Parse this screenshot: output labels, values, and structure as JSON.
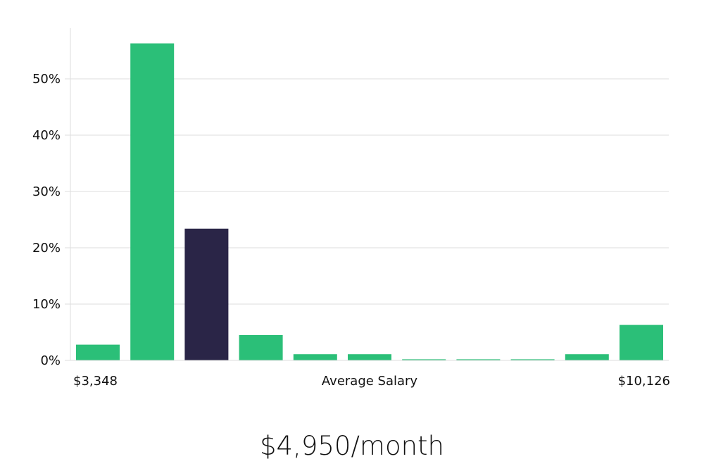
{
  "chart_data": {
    "type": "bar",
    "categories": [
      "",
      "",
      "",
      "",
      "",
      "",
      "",
      "",
      "",
      "",
      ""
    ],
    "values": [
      2.8,
      56.3,
      23.4,
      4.5,
      1.1,
      1.1,
      0.2,
      0.2,
      0.2,
      1.1,
      6.3
    ],
    "highlight_index": 2,
    "y_ticks": [
      0,
      10,
      20,
      30,
      40,
      50
    ],
    "y_tick_labels": [
      "0%",
      "10%",
      "20%",
      "30%",
      "40%",
      "50%"
    ],
    "ylim": [
      0,
      59
    ],
    "grid": true,
    "x_min_label": "$3,348",
    "xlabel": "Average Salary",
    "x_max_label": "$10,126",
    "colors": {
      "bar": "#2bbf78",
      "highlight": "#2a2547",
      "grid": "#dddddd",
      "axis": "#dddddd"
    }
  },
  "salary": {
    "value": "$4,950/month"
  }
}
